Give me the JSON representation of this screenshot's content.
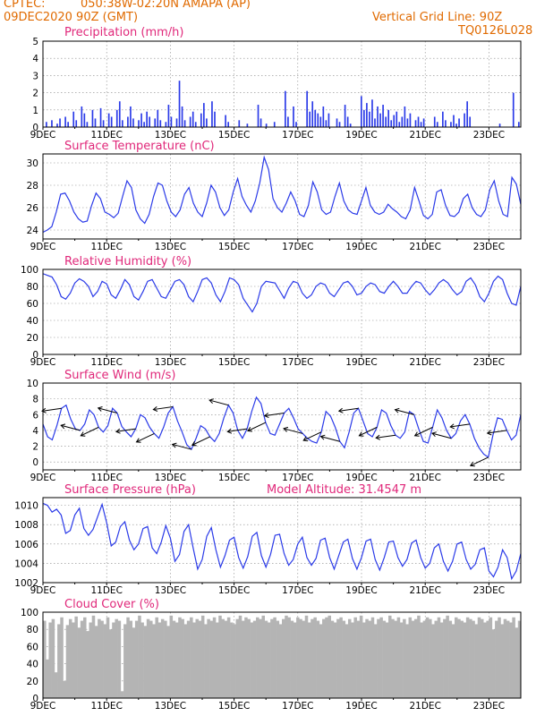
{
  "header": {
    "source": "CPTEC:",
    "location": "050:38W-02:20N   AMAPA (AP)",
    "run": "09DEC2020 90Z (GMT)",
    "grid_note": "Vertical Grid Line: 90Z",
    "code": "TQ0126L028"
  },
  "colors": {
    "header": "#e06a00",
    "panel_title": "#e0287a",
    "series": "#2a3ae8",
    "cloud": "#b4b4b4"
  },
  "chart_data": [
    {
      "id": "precip",
      "type": "bar",
      "title": "Precipitation (mm/h)",
      "ylim": [
        0,
        5
      ],
      "yticks": [
        0,
        1,
        2,
        3,
        4,
        5
      ],
      "xticks": [
        "9DEC",
        "11DEC",
        "13DEC",
        "15DEC",
        "17DEC",
        "19DEC",
        "21DEC",
        "23DEC"
      ],
      "x_day_range": [
        0,
        15
      ],
      "values": [
        0,
        0.3,
        0,
        0.4,
        0,
        0.2,
        0.5,
        0,
        0.6,
        0.3,
        0,
        0.9,
        0.4,
        0,
        1.2,
        0.8,
        0.3,
        0,
        1.0,
        0.5,
        0,
        1.1,
        0.4,
        0,
        0.8,
        0.6,
        0,
        1.0,
        1.5,
        0.4,
        0,
        0.6,
        1.2,
        0.5,
        0,
        0.4,
        0.8,
        0.3,
        0.9,
        0.6,
        0,
        0.5,
        1.0,
        0.4,
        0,
        0.3,
        1.3,
        0.6,
        0,
        0.5,
        2.7,
        1.2,
        0.4,
        0,
        0.6,
        0.9,
        0.3,
        0,
        0.8,
        1.4,
        0.5,
        0,
        1.5,
        0.9,
        0,
        0,
        0,
        0.7,
        0.3,
        0,
        0,
        0,
        0.4,
        0,
        0,
        0.2,
        0,
        0,
        0,
        1.3,
        0.5,
        0,
        0.2,
        0,
        0,
        0.3,
        0,
        0,
        0,
        2.1,
        0.6,
        0,
        1.2,
        0.3,
        0,
        0,
        0,
        2.1,
        0.9,
        1.5,
        1.0,
        0.8,
        0.6,
        1.2,
        0.4,
        0.8,
        0,
        0,
        0.5,
        0.3,
        0,
        1.3,
        0.6,
        0.2,
        0,
        0,
        0,
        1.8,
        1.0,
        1.4,
        0.9,
        1.6,
        0.5,
        1.2,
        0.8,
        1.3,
        0.6,
        1.0,
        0.4,
        0.7,
        0.9,
        0.3,
        0.6,
        1.2,
        0.5,
        0.8,
        0,
        0.4,
        0.6,
        0.3,
        0.5,
        0,
        0,
        0,
        0.6,
        0.3,
        0,
        0.9,
        0.4,
        0,
        0.3,
        0.7,
        0.2,
        0.5,
        0,
        0.8,
        1.5,
        0.6,
        0,
        0,
        0,
        0,
        0,
        0,
        0,
        0,
        0,
        0,
        0.2,
        0,
        0,
        0,
        0,
        2.0,
        0,
        0.3
      ]
    },
    {
      "id": "temp",
      "type": "line",
      "title": "Surface Temperature (nC)",
      "ylim": [
        23.2,
        30.8
      ],
      "yticks": [
        24,
        26,
        28,
        30
      ],
      "xticks": [
        "9DEC",
        "11DEC",
        "13DEC",
        "15DEC",
        "17DEC",
        "19DEC",
        "21DEC",
        "23DEC"
      ],
      "x_day_range": [
        0,
        15
      ],
      "values": [
        23.8,
        24.0,
        24.3,
        25.6,
        27.2,
        27.3,
        26.6,
        25.6,
        25.0,
        24.7,
        24.8,
        26.2,
        27.3,
        26.8,
        25.6,
        25.4,
        25.1,
        25.5,
        27.0,
        28.4,
        27.8,
        25.8,
        25.0,
        24.6,
        25.4,
        27.0,
        28.2,
        28.0,
        26.6,
        25.6,
        25.2,
        25.8,
        27.2,
        27.8,
        26.4,
        25.6,
        25.2,
        26.4,
        28.0,
        27.4,
        26.0,
        25.3,
        25.8,
        27.4,
        28.6,
        27.0,
        26.2,
        25.6,
        26.6,
        28.2,
        30.5,
        29.4,
        26.8,
        26.0,
        25.6,
        26.4,
        27.4,
        26.6,
        25.4,
        25.2,
        26.2,
        28.3,
        27.4,
        25.8,
        25.4,
        25.6,
        27.0,
        28.2,
        26.6,
        25.8,
        25.5,
        25.4,
        26.6,
        27.8,
        26.2,
        25.6,
        25.4,
        25.6,
        26.3,
        25.9,
        25.6,
        25.2,
        25.0,
        25.8,
        27.8,
        26.6,
        25.3,
        25.0,
        25.4,
        27.4,
        27.6,
        26.2,
        25.3,
        25.2,
        25.6,
        26.8,
        27.2,
        26.0,
        25.4,
        25.2,
        25.8,
        27.6,
        28.4,
        26.6,
        25.4,
        25.2,
        28.7,
        28.1,
        26.3
      ]
    },
    {
      "id": "rh",
      "type": "line",
      "title": "Relative Humidity (%)",
      "ylim": [
        0,
        100
      ],
      "yticks": [
        0,
        20,
        40,
        60,
        80,
        100
      ],
      "xticks": [
        "9DEC",
        "11DEC",
        "13DEC",
        "15DEC",
        "17DEC",
        "19DEC",
        "21DEC",
        "23DEC"
      ],
      "x_day_range": [
        0,
        15
      ],
      "values": [
        95,
        93,
        91,
        82,
        68,
        65,
        72,
        84,
        89,
        86,
        80,
        68,
        74,
        86,
        83,
        70,
        66,
        76,
        88,
        82,
        68,
        64,
        74,
        86,
        88,
        78,
        68,
        66,
        76,
        86,
        88,
        82,
        68,
        62,
        74,
        88,
        90,
        84,
        70,
        62,
        74,
        90,
        88,
        82,
        66,
        58,
        50,
        60,
        80,
        86,
        85,
        84,
        75,
        66,
        78,
        86,
        84,
        72,
        66,
        70,
        80,
        84,
        82,
        72,
        68,
        76,
        84,
        86,
        80,
        70,
        72,
        80,
        84,
        82,
        74,
        72,
        80,
        86,
        80,
        72,
        72,
        80,
        86,
        84,
        76,
        70,
        76,
        84,
        88,
        84,
        76,
        70,
        74,
        86,
        90,
        82,
        68,
        62,
        72,
        86,
        92,
        88,
        72,
        60,
        58,
        80
      ]
    },
    {
      "id": "wind",
      "type": "line",
      "title": "Surface Wind (m/s)",
      "ylim": [
        -1,
        10
      ],
      "yticks": [
        0,
        2,
        4,
        6,
        8,
        10
      ],
      "xticks": [
        "9DEC",
        "11DEC",
        "13DEC",
        "15DEC",
        "17DEC",
        "19DEC",
        "21DEC",
        "23DEC"
      ],
      "x_day_range": [
        0,
        15
      ],
      "values": [
        4.8,
        3.2,
        2.8,
        4.6,
        6.8,
        7.2,
        5.4,
        4.2,
        4.0,
        4.8,
        6.6,
        6.0,
        4.4,
        3.8,
        4.6,
        6.8,
        6.2,
        4.5,
        3.8,
        3.2,
        4.2,
        6.0,
        5.6,
        4.4,
        3.6,
        3.0,
        4.4,
        6.2,
        7.0,
        5.2,
        3.8,
        2.2,
        1.6,
        3.0,
        4.6,
        4.2,
        3.2,
        2.6,
        3.6,
        5.6,
        7.2,
        6.2,
        4.0,
        3.0,
        4.2,
        6.4,
        8.2,
        7.4,
        5.0,
        3.6,
        3.4,
        4.8,
        6.2,
        6.8,
        5.6,
        4.2,
        3.6,
        3.0,
        2.6,
        2.4,
        3.8,
        6.4,
        5.8,
        4.4,
        2.6,
        1.8,
        3.8,
        6.2,
        6.8,
        5.2,
        3.6,
        3.2,
        4.4,
        6.6,
        6.2,
        4.6,
        3.4,
        3.0,
        3.8,
        6.4,
        6.0,
        4.2,
        2.6,
        2.4,
        4.4,
        6.6,
        5.6,
        4.0,
        3.0,
        3.6,
        5.2,
        6.0,
        4.8,
        3.0,
        1.8,
        1.0,
        0.6,
        3.4,
        5.6,
        5.4,
        4.0,
        2.8,
        3.4,
        6.0
      ]
    },
    {
      "id": "pres",
      "type": "line",
      "title": "Surface Pressure (hPa)",
      "subtitle": "Model Altitude: 31.4547 m",
      "ylim": [
        1002,
        1010.8
      ],
      "yticks": [
        1002,
        1004,
        1006,
        1008,
        1010
      ],
      "xticks": [
        "9DEC",
        "11DEC",
        "13DEC",
        "15DEC",
        "17DEC",
        "19DEC",
        "21DEC",
        "23DEC"
      ],
      "x_day_range": [
        0,
        15
      ],
      "values": [
        1010.2,
        1010.0,
        1009.3,
        1009.6,
        1009.0,
        1007.1,
        1007.4,
        1009.0,
        1009.7,
        1007.6,
        1006.9,
        1007.5,
        1008.8,
        1010.1,
        1008.2,
        1005.8,
        1006.2,
        1007.8,
        1008.3,
        1006.4,
        1005.4,
        1006.0,
        1007.6,
        1007.8,
        1005.6,
        1005.0,
        1006.2,
        1007.9,
        1006.6,
        1004.2,
        1004.9,
        1007.3,
        1008.0,
        1005.6,
        1003.4,
        1004.4,
        1006.8,
        1007.7,
        1005.4,
        1003.6,
        1004.8,
        1006.4,
        1006.7,
        1004.6,
        1003.5,
        1004.7,
        1006.8,
        1007.2,
        1004.8,
        1003.6,
        1004.9,
        1006.9,
        1007.0,
        1005.0,
        1003.8,
        1004.4,
        1006.0,
        1006.7,
        1004.6,
        1003.8,
        1004.5,
        1006.4,
        1006.6,
        1004.6,
        1003.4,
        1004.8,
        1006.2,
        1006.5,
        1004.5,
        1003.4,
        1004.6,
        1006.3,
        1006.5,
        1004.4,
        1003.3,
        1004.6,
        1006.2,
        1006.3,
        1004.6,
        1003.7,
        1004.4,
        1006.1,
        1006.4,
        1004.6,
        1003.5,
        1004.0,
        1005.6,
        1006.0,
        1004.2,
        1003.2,
        1004.2,
        1006.0,
        1006.2,
        1004.4,
        1003.4,
        1003.9,
        1005.4,
        1005.6,
        1003.2,
        1002.6,
        1003.6,
        1005.4,
        1004.6,
        1002.4,
        1003.2,
        1005.0
      ]
    },
    {
      "id": "cloud",
      "type": "bar",
      "title": "Cloud Cover (%)",
      "ylim": [
        0,
        100
      ],
      "yticks": [
        0,
        20,
        40,
        60,
        80,
        100
      ],
      "xticks": [
        "9DEC",
        "11DEC",
        "13DEC",
        "15DEC",
        "17DEC",
        "19DEC",
        "21DEC",
        "23DEC"
      ],
      "x_day_range": [
        0,
        15
      ],
      "values": [
        90,
        45,
        88,
        92,
        30,
        86,
        94,
        20,
        85,
        92,
        88,
        95,
        82,
        90,
        94,
        78,
        88,
        96,
        84,
        92,
        90,
        86,
        94,
        80,
        88,
        92,
        90,
        8,
        86,
        94,
        90,
        82,
        90,
        96,
        88,
        84,
        92,
        90,
        86,
        94,
        88,
        92,
        90,
        84,
        96,
        90,
        88,
        94,
        92,
        86,
        90,
        94,
        88,
        92,
        90,
        96,
        86,
        92,
        90,
        94,
        88,
        96,
        92,
        90,
        94,
        88,
        86,
        92,
        96,
        90,
        94,
        92,
        88,
        90,
        94,
        92,
        96,
        90,
        88,
        92,
        94,
        90,
        86,
        92,
        96,
        94,
        90,
        88,
        94,
        92,
        90,
        96,
        88,
        92,
        94,
        90,
        86,
        92,
        94,
        96,
        90,
        88,
        92,
        94,
        90,
        86,
        92,
        88,
        94,
        90,
        96,
        88,
        92,
        90,
        94,
        86,
        92,
        94,
        90,
        88,
        96,
        92,
        90,
        94,
        88,
        92,
        86,
        94,
        90,
        92,
        96,
        88,
        90,
        94,
        92,
        86,
        90,
        94,
        88,
        92,
        96,
        90,
        86,
        94,
        92,
        90,
        88,
        94,
        92,
        90,
        86,
        94,
        92,
        88,
        90,
        94,
        80,
        90,
        94,
        86,
        92,
        90,
        88,
        94,
        82,
        90
      ]
    }
  ]
}
